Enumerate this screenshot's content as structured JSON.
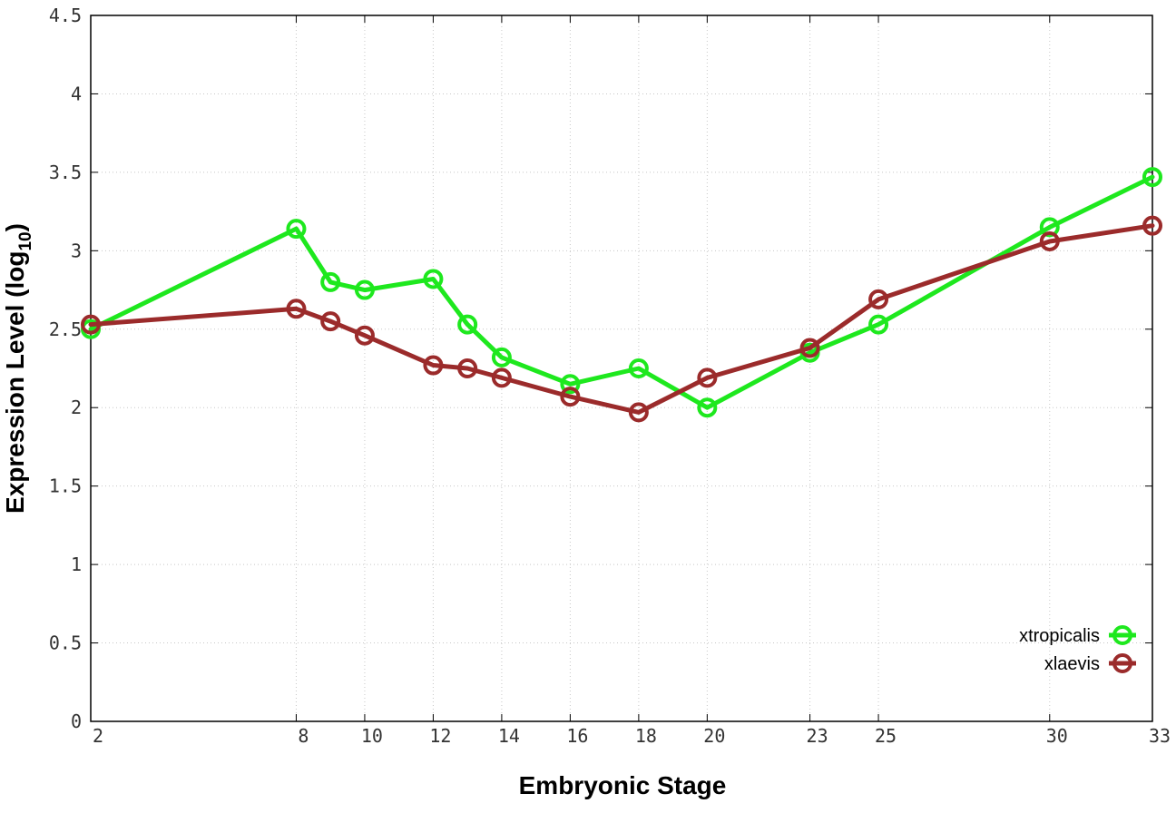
{
  "chart_data": {
    "type": "line",
    "xlabel": "Embryonic Stage",
    "ylabel_main": "Expression Level (log",
    "ylabel_sub": "10",
    "ylabel_close": ")",
    "x": [
      2,
      8,
      9,
      10,
      12,
      13,
      14,
      16,
      18,
      20,
      23,
      25,
      30,
      33
    ],
    "x_ticks": [
      2,
      8,
      10,
      12,
      14,
      16,
      18,
      20,
      23,
      25,
      30,
      33
    ],
    "y_ticks": [
      "0",
      "0.5",
      "1",
      "1.5",
      "2",
      "2.5",
      "3",
      "3.5",
      "4",
      "4.5"
    ],
    "xlim": [
      2,
      33
    ],
    "ylim": [
      0,
      4.5
    ],
    "grid": true,
    "legend_position": "bottom-right",
    "series": [
      {
        "name": "xtropicalis",
        "color": "#1ee81e",
        "values": [
          2.5,
          3.14,
          2.8,
          2.75,
          2.82,
          2.53,
          2.32,
          2.15,
          2.25,
          2.0,
          2.35,
          2.53,
          3.15,
          3.47
        ]
      },
      {
        "name": "xlaevis",
        "color": "#9b2b2b",
        "values": [
          2.53,
          2.63,
          2.55,
          2.46,
          2.27,
          2.25,
          2.19,
          2.07,
          1.97,
          2.19,
          2.38,
          2.69,
          3.06,
          3.16
        ]
      }
    ]
  }
}
